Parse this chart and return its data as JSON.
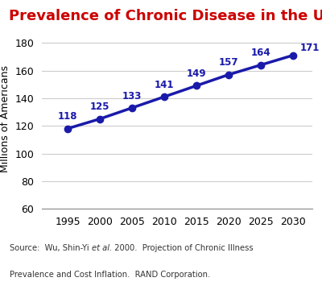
{
  "title": "Prevalence of Chronic Disease in the U.S.",
  "title_color": "#cc0000",
  "title_fontsize": 13,
  "ylabel": "Millions of Americans",
  "ylabel_fontsize": 9,
  "x": [
    1995,
    2000,
    2005,
    2010,
    2015,
    2020,
    2025,
    2030
  ],
  "y": [
    118,
    125,
    133,
    141,
    149,
    157,
    164,
    171
  ],
  "line_color": "#1a1aaa",
  "marker_color": "#1a1aaa",
  "marker_style": "o",
  "marker_size": 6,
  "line_width": 2.5,
  "data_label_color": "#1a1aaa",
  "data_label_fontsize": 8.5,
  "ylim": [
    60,
    190
  ],
  "yticks": [
    60,
    80,
    100,
    120,
    140,
    160,
    180
  ],
  "xticks": [
    1995,
    2000,
    2005,
    2010,
    2015,
    2020,
    2025,
    2030
  ],
  "xlim": [
    1991,
    2033
  ],
  "grid_color": "#cccccc",
  "bg_color": "#ffffff",
  "source_line1_pre": "Source:  Wu, Shin-Yi ",
  "source_line1_italic": "et al.",
  "source_line1_post": " 2000.  Projection of Chronic Illness",
  "source_line2": "Prevalence and Cost Inflation.  RAND Corporation.",
  "source_fontsize": 7.2,
  "tick_fontsize": 9
}
